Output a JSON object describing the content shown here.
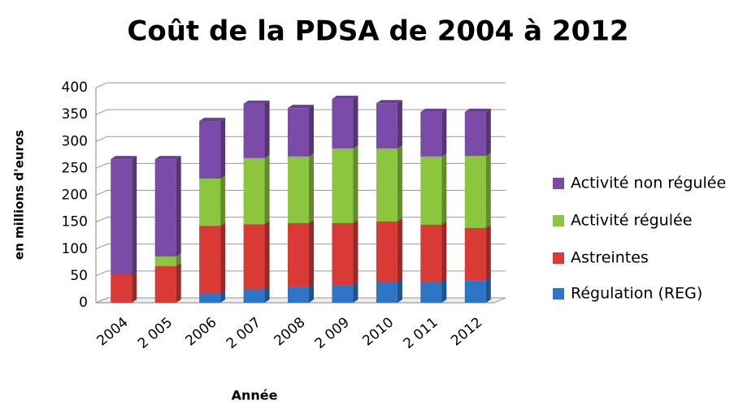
{
  "chart_data": {
    "type": "bar",
    "stacked": true,
    "title": "Coût de la PDSA de 2004 à 2012",
    "x_label": "Année",
    "y_label": "en millions d'euros",
    "categories": [
      "2004",
      "2 005",
      "2006",
      "2 007",
      "2008",
      "2 009",
      "2010",
      "2 011",
      "2012"
    ],
    "series": [
      {
        "name": "Régulation (REG)",
        "color": "#2e75c8",
        "values": [
          0,
          0,
          18,
          25,
          30,
          33,
          38,
          39,
          42
        ]
      },
      {
        "name": "Astreintes",
        "color": "#d93a36",
        "values": [
          53,
          68,
          125,
          121,
          118,
          115,
          113,
          106,
          97
        ]
      },
      {
        "name": "Activité régulée",
        "color": "#8cc63f",
        "values": [
          0,
          18,
          88,
          123,
          124,
          139,
          136,
          127,
          134
        ]
      },
      {
        "name": "Activité non régulée",
        "color": "#7a4ba8",
        "values": [
          214,
          181,
          107,
          101,
          90,
          92,
          84,
          83,
          82
        ]
      }
    ],
    "ylim": [
      0,
      400
    ],
    "yticks": [
      0,
      50,
      100,
      150,
      200,
      250,
      300,
      350,
      400
    ],
    "grid": true
  }
}
